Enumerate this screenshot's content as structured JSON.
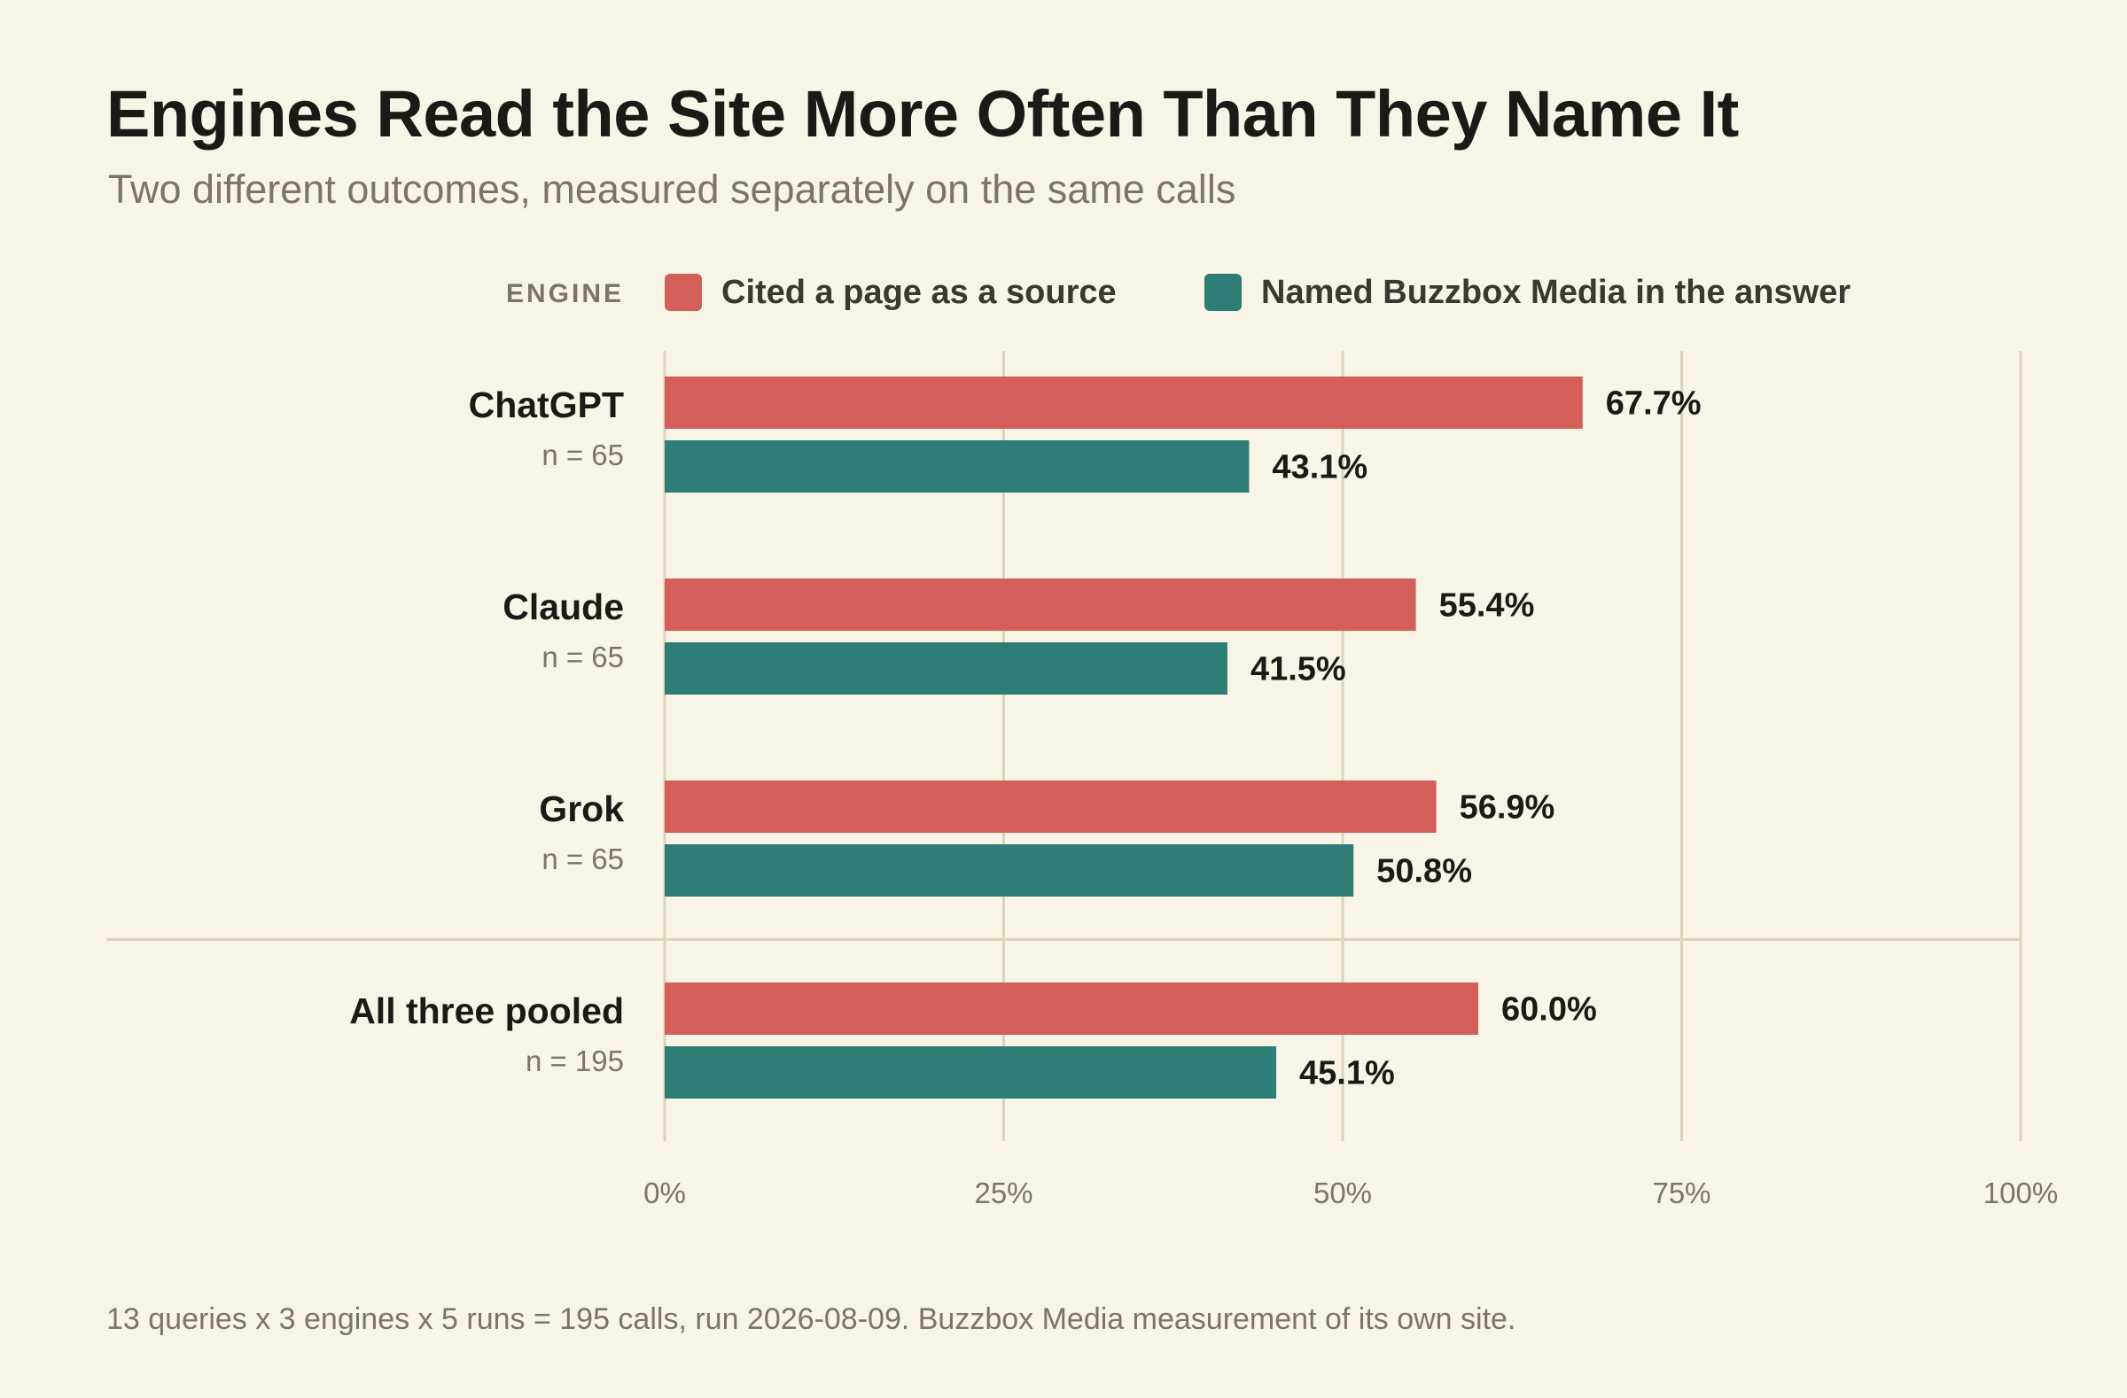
{
  "colors": {
    "background": "#f8f4e6",
    "cited": "#d45e5a",
    "named": "#2e7d77",
    "grid": "#ddd3b9",
    "muted_text": "#7a7568",
    "dark_text": "#1c1a17"
  },
  "chart_data": {
    "type": "bar",
    "orientation": "horizontal",
    "title": "Engines Read the Site More Often Than They Name It",
    "subtitle": "Two different outcomes, measured separately on the same calls",
    "legend_title": "ENGINE",
    "legend_placement": "top",
    "categories": [
      "ChatGPT",
      "Claude",
      "Grok",
      "All three pooled"
    ],
    "category_notes": [
      "n = 65",
      "n = 65",
      "n = 65",
      "n = 195"
    ],
    "series": [
      {
        "name": "Cited a page as a source",
        "color": "#d45e5a",
        "values": [
          67.7,
          55.4,
          56.9,
          60.0
        ],
        "labels": [
          "67.7%",
          "55.4%",
          "56.9%",
          "60.0%"
        ]
      },
      {
        "name": "Named Buzzbox Media in the answer",
        "color": "#2e7d77",
        "values": [
          43.1,
          41.5,
          50.8,
          45.1
        ],
        "labels": [
          "43.1%",
          "41.5%",
          "50.8%",
          "45.1%"
        ]
      }
    ],
    "xlim": [
      0,
      100
    ],
    "xticks": [
      0,
      25,
      50,
      75,
      100
    ],
    "xtick_labels": [
      "0%",
      "25%",
      "50%",
      "75%",
      "100%"
    ],
    "xlabel": "",
    "ylabel": "",
    "grid": true,
    "separator_before_category": "All three pooled",
    "footnote": "13 queries x 3 engines x 5 runs = 195 calls, run 2026-08-09. Buzzbox Media measurement of its own site."
  }
}
